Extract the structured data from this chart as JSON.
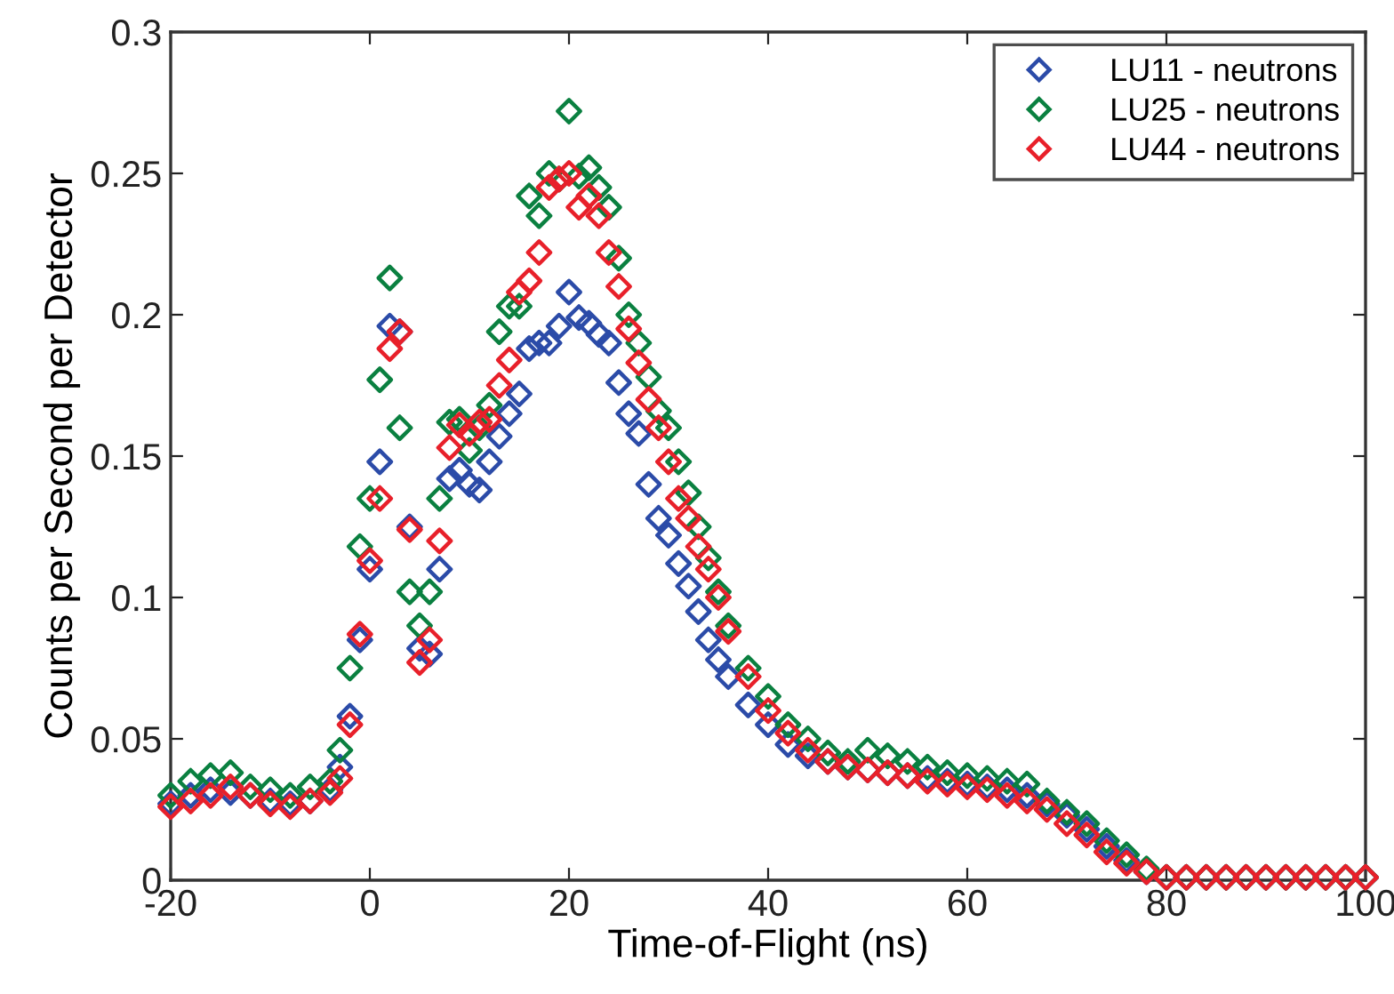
{
  "chart_data": {
    "type": "scatter",
    "xlabel": "Time-of-Flight (ns)",
    "ylabel": "Counts per Second per Detector",
    "x": [
      -20,
      -18,
      -16,
      -14,
      -12,
      -10,
      -8,
      -6,
      -4,
      -3,
      -2,
      -1,
      0,
      1,
      2,
      3,
      4,
      5,
      6,
      7,
      8,
      9,
      10,
      11,
      12,
      13,
      14,
      15,
      16,
      17,
      18,
      19,
      20,
      21,
      22,
      23,
      24,
      25,
      26,
      27,
      28,
      29,
      30,
      31,
      32,
      33,
      34,
      35,
      36,
      38,
      40,
      42,
      44,
      46,
      48,
      50,
      52,
      54,
      56,
      58,
      60,
      62,
      64,
      66,
      68,
      70,
      72,
      74,
      76,
      78,
      80,
      82,
      84,
      86,
      88,
      90,
      92,
      94,
      96,
      98,
      100
    ],
    "series": [
      {
        "name": "LU11 - neutrons",
        "color": "#2b4ba8",
        "values": [
          0.027,
          0.03,
          0.032,
          0.031,
          0.03,
          0.028,
          0.027,
          0.028,
          0.032,
          0.04,
          0.058,
          0.085,
          0.11,
          0.148,
          0.196,
          0.194,
          0.125,
          0.082,
          0.08,
          0.11,
          0.142,
          0.145,
          0.14,
          0.138,
          0.148,
          0.157,
          0.165,
          0.172,
          0.188,
          0.19,
          0.19,
          0.196,
          0.208,
          0.199,
          0.197,
          0.193,
          0.19,
          0.176,
          0.165,
          0.158,
          0.14,
          0.128,
          0.122,
          0.112,
          0.104,
          0.095,
          0.085,
          0.078,
          0.072,
          0.062,
          0.055,
          0.048,
          0.044,
          0.042,
          0.04,
          0.039,
          0.038,
          0.037,
          0.036,
          0.035,
          0.034,
          0.033,
          0.032,
          0.03,
          0.027,
          0.023,
          0.018,
          0.012,
          0.007,
          0.003,
          0.001,
          0.001,
          0.001,
          0.001,
          0.001,
          0.001,
          0.001,
          0.001,
          0.001,
          0.001,
          0.001
        ]
      },
      {
        "name": "LU25 - neutrons",
        "color": "#0a8040",
        "values": [
          0.03,
          0.035,
          0.037,
          0.038,
          0.033,
          0.032,
          0.03,
          0.033,
          0.035,
          0.046,
          0.075,
          0.118,
          0.135,
          0.177,
          0.213,
          0.16,
          0.102,
          0.09,
          0.102,
          0.135,
          0.162,
          0.163,
          0.152,
          0.16,
          0.168,
          0.194,
          0.203,
          0.203,
          0.242,
          0.235,
          0.25,
          0.248,
          0.272,
          0.249,
          0.252,
          0.245,
          0.238,
          0.22,
          0.2,
          0.19,
          0.178,
          0.166,
          0.16,
          0.148,
          0.137,
          0.125,
          0.114,
          0.102,
          0.09,
          0.075,
          0.065,
          0.055,
          0.05,
          0.045,
          0.042,
          0.046,
          0.044,
          0.042,
          0.04,
          0.038,
          0.037,
          0.036,
          0.035,
          0.034,
          0.028,
          0.024,
          0.02,
          0.014,
          0.009,
          0.004,
          0.001,
          0.001,
          0.001,
          0.001,
          0.001,
          0.001,
          0.001,
          0.001,
          0.001,
          0.001,
          0.001
        ]
      },
      {
        "name": "LU44 - neutrons",
        "color": "#e8202a",
        "values": [
          0.026,
          0.028,
          0.03,
          0.033,
          0.03,
          0.027,
          0.026,
          0.028,
          0.031,
          0.036,
          0.055,
          0.087,
          0.113,
          0.135,
          0.188,
          0.194,
          0.124,
          0.077,
          0.085,
          0.12,
          0.153,
          0.161,
          0.158,
          0.162,
          0.163,
          0.175,
          0.184,
          0.208,
          0.212,
          0.222,
          0.245,
          0.248,
          0.25,
          0.238,
          0.242,
          0.235,
          0.222,
          0.21,
          0.195,
          0.183,
          0.17,
          0.16,
          0.148,
          0.135,
          0.128,
          0.118,
          0.11,
          0.1,
          0.088,
          0.072,
          0.06,
          0.052,
          0.046,
          0.042,
          0.04,
          0.039,
          0.038,
          0.037,
          0.035,
          0.034,
          0.033,
          0.032,
          0.03,
          0.028,
          0.025,
          0.02,
          0.016,
          0.01,
          0.006,
          0.003,
          0.001,
          0.001,
          0.001,
          0.001,
          0.001,
          0.001,
          0.001,
          0.001,
          0.001,
          0.001,
          0.001
        ]
      }
    ],
    "xlim": [
      -20,
      100
    ],
    "xticks": [
      -20,
      0,
      20,
      40,
      60,
      80,
      100
    ],
    "ylim": [
      0,
      0.3
    ],
    "yticks": [
      0,
      0.05,
      0.1,
      0.15,
      0.2,
      0.25,
      0.3
    ],
    "marker": "diamond",
    "legend": "top right",
    "grid": false
  }
}
